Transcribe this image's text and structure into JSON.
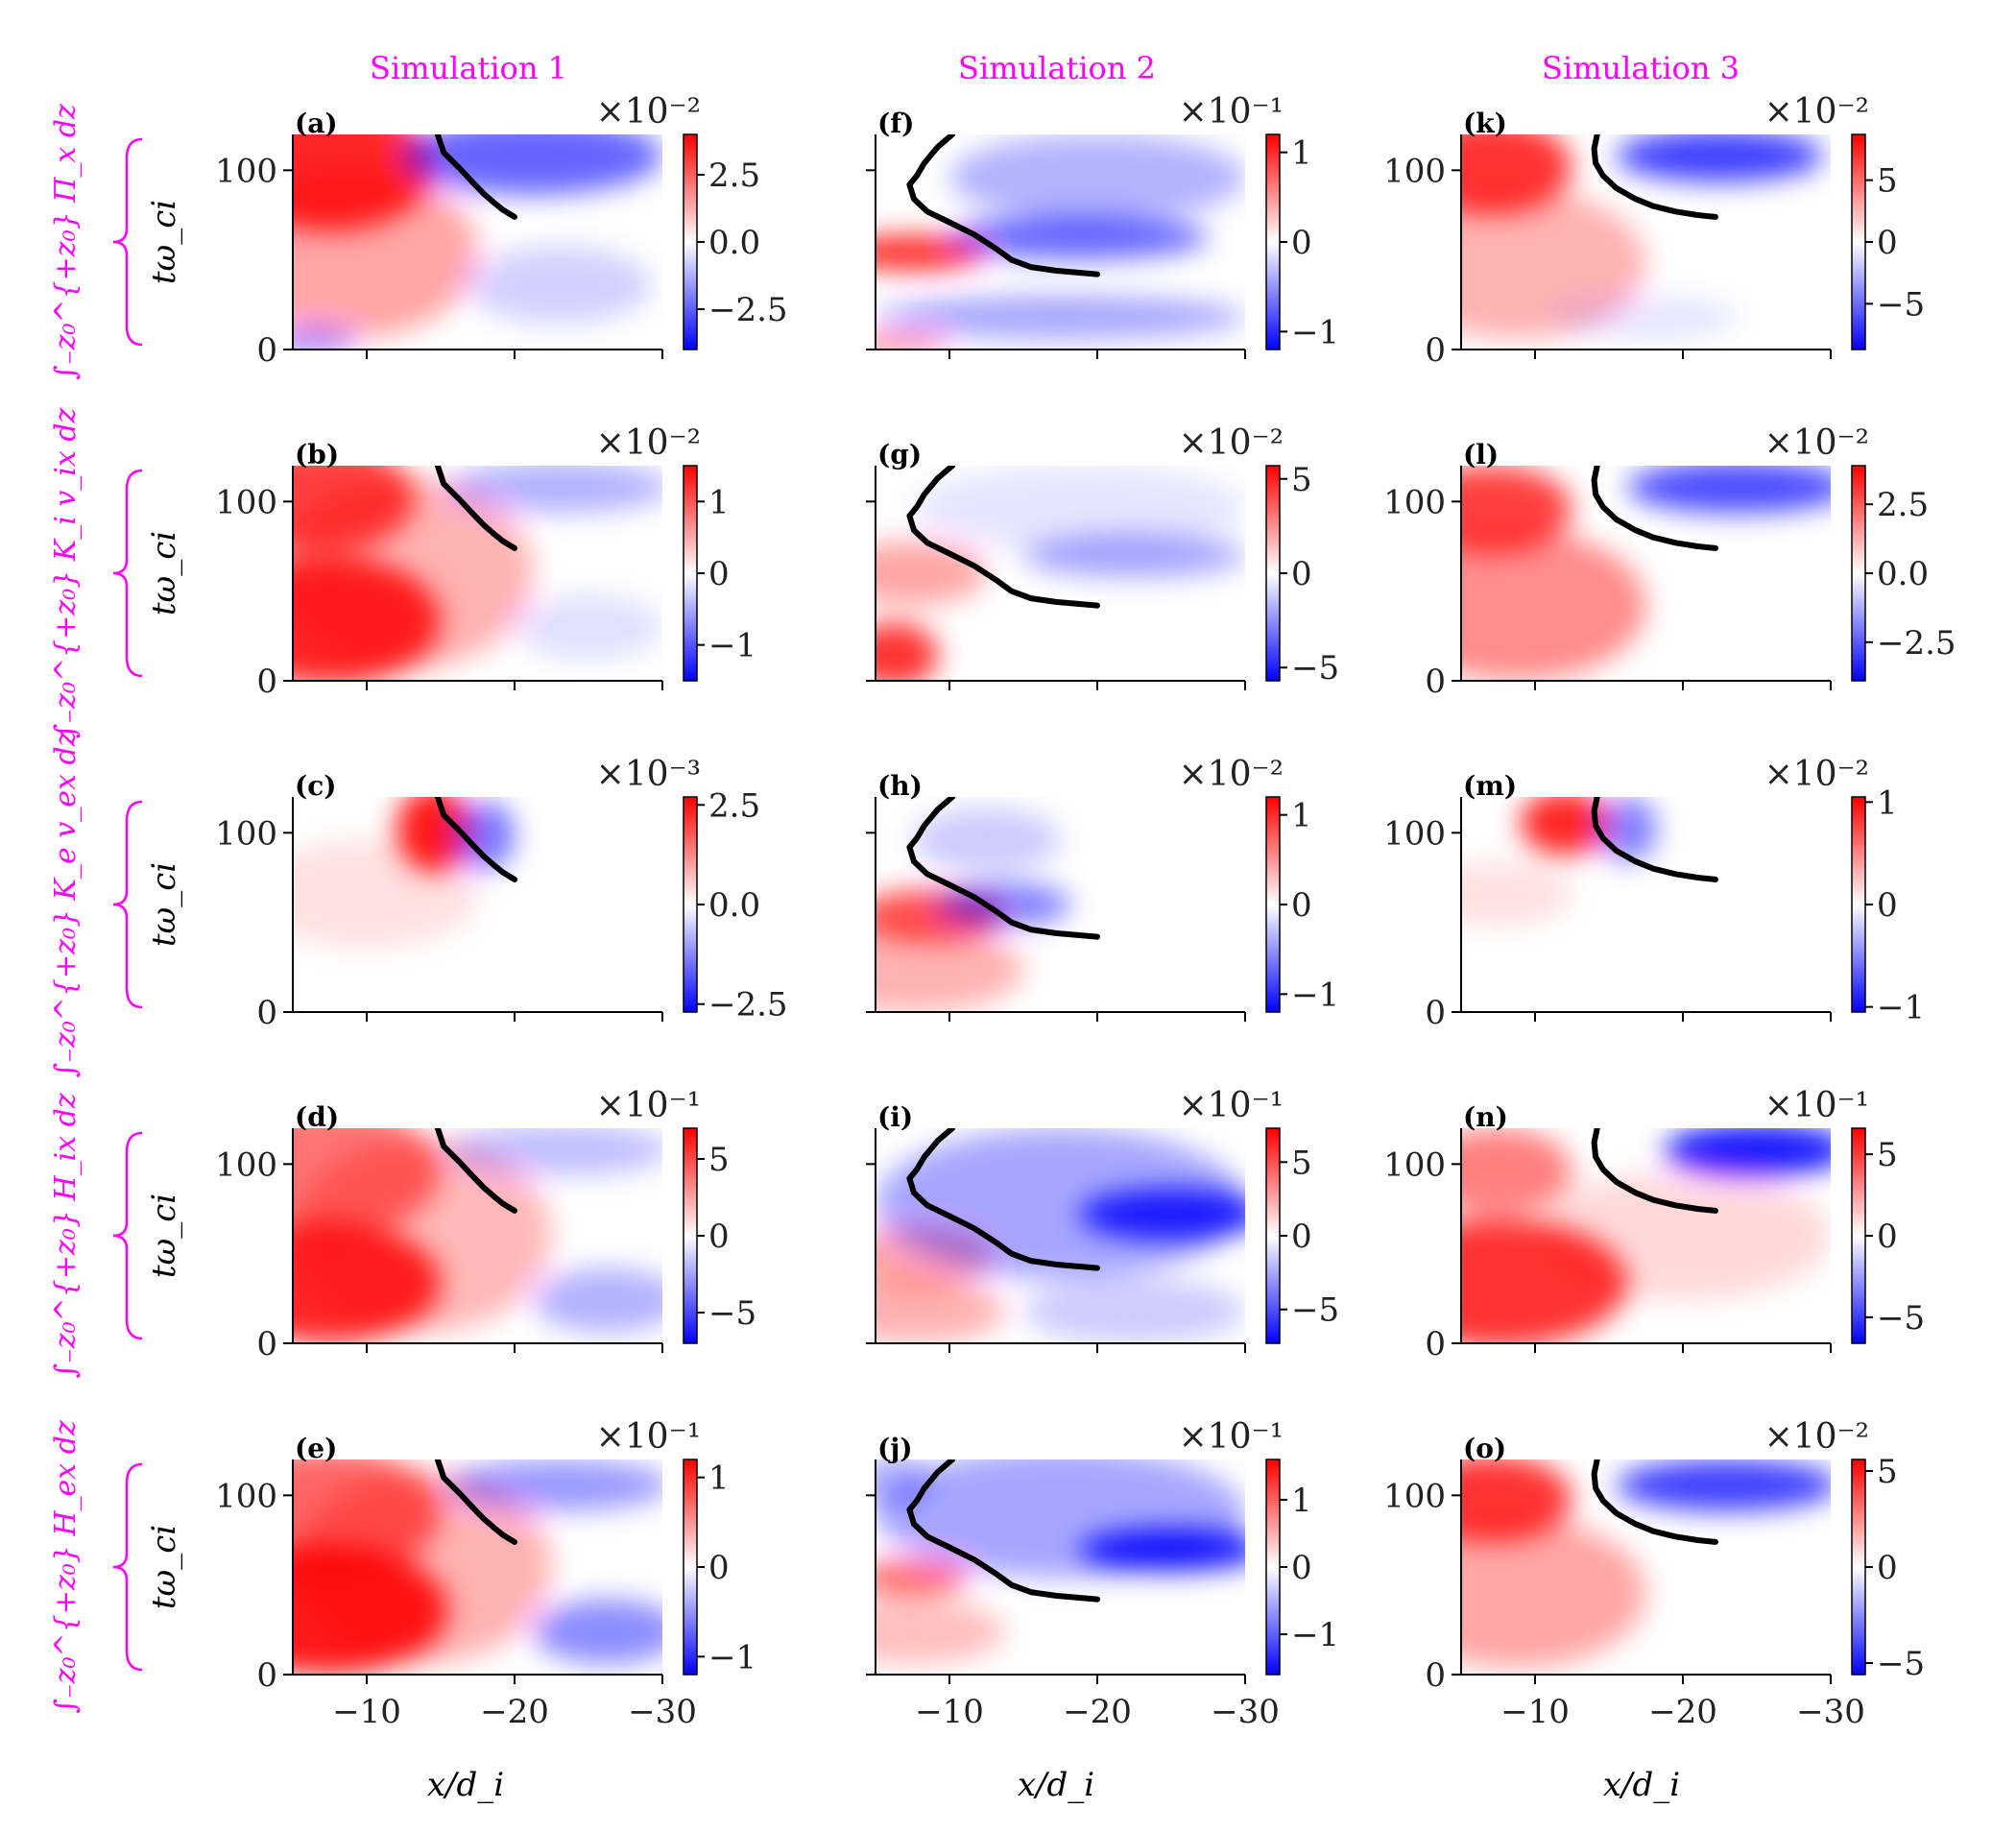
{
  "chart_data": {
    "type": "heatmap",
    "columns": [
      "Simulation 1",
      "Simulation 2",
      "Simulation 3"
    ],
    "row_labels": [
      "∫₋z₀^{+z₀} Π_x dz",
      "∫₋z₀^{+z₀} K_i v_ix dz",
      "∫₋z₀^{+z₀} K_e v_ex dz",
      "∫₋z₀^{+z₀} H_ix dz",
      "∫₋z₀^{+z₀} H_ex dz"
    ],
    "ylabel": "tω_ci",
    "xlabel": "x/d_i",
    "xlim": [
      -5,
      -30
    ],
    "ylim": [
      0,
      120
    ],
    "xticks": [
      "−10",
      "−20",
      "−30"
    ],
    "yticks": [
      "0",
      "100"
    ],
    "colormap": {
      "neg": "#0000ff",
      "mid": "#ffffff",
      "pos": "#ff0000"
    },
    "panels": [
      {
        "label": "(a)",
        "scale": "×10⁻²",
        "cbticks": [
          "2.5",
          "0.0",
          "−2.5"
        ],
        "cbvals": [
          2.5,
          0,
          -2.5
        ],
        "vmax": 4
      },
      {
        "label": "(b)",
        "scale": "×10⁻²",
        "cbticks": [
          "1",
          "0",
          "−1"
        ],
        "cbvals": [
          1,
          0,
          -1
        ],
        "vmax": 1.5
      },
      {
        "label": "(c)",
        "scale": "×10⁻³",
        "cbticks": [
          "2.5",
          "0.0",
          "−2.5"
        ],
        "cbvals": [
          2.5,
          0,
          -2.5
        ],
        "vmax": 2.7
      },
      {
        "label": "(d)",
        "scale": "×10⁻¹",
        "cbticks": [
          "5",
          "0",
          "−5"
        ],
        "cbvals": [
          5,
          0,
          -5
        ],
        "vmax": 7
      },
      {
        "label": "(e)",
        "scale": "×10⁻¹",
        "cbticks": [
          "1",
          "0",
          "−1"
        ],
        "cbvals": [
          1,
          0,
          -1
        ],
        "vmax": 1.2
      },
      {
        "label": "(f)",
        "scale": "×10⁻¹",
        "cbticks": [
          "1",
          "0",
          "−1"
        ],
        "cbvals": [
          1,
          0,
          -1
        ],
        "vmax": 1.2
      },
      {
        "label": "(g)",
        "scale": "×10⁻²",
        "cbticks": [
          "5",
          "0",
          "−5"
        ],
        "cbvals": [
          5,
          0,
          -5
        ],
        "vmax": 5.7
      },
      {
        "label": "(h)",
        "scale": "×10⁻²",
        "cbticks": [
          "1",
          "0",
          "−1"
        ],
        "cbvals": [
          1,
          0,
          -1
        ],
        "vmax": 1.2
      },
      {
        "label": "(i)",
        "scale": "×10⁻¹",
        "cbticks": [
          "5",
          "0",
          "−5"
        ],
        "cbvals": [
          5,
          0,
          -5
        ],
        "vmax": 7.3
      },
      {
        "label": "(j)",
        "scale": "×10⁻¹",
        "cbticks": [
          "1",
          "0",
          "−1"
        ],
        "cbvals": [
          1,
          0,
          -1
        ],
        "vmax": 1.6
      },
      {
        "label": "(k)",
        "scale": "×10⁻²",
        "cbticks": [
          "5",
          "0",
          "−5"
        ],
        "cbvals": [
          5,
          0,
          -5
        ],
        "vmax": 8.7
      },
      {
        "label": "(l)",
        "scale": "×10⁻²",
        "cbticks": [
          "2.5",
          "0.0",
          "−2.5"
        ],
        "cbvals": [
          2.5,
          0,
          -2.5
        ],
        "vmax": 3.9
      },
      {
        "label": "(m)",
        "scale": "×10⁻²",
        "cbticks": [
          "1",
          "0",
          "−1"
        ],
        "cbvals": [
          1,
          0,
          -1
        ],
        "vmax": 1.05
      },
      {
        "label": "(n)",
        "scale": "×10⁻¹",
        "cbticks": [
          "5",
          "0",
          "−5"
        ],
        "cbvals": [
          5,
          0,
          -5
        ],
        "vmax": 6.6
      },
      {
        "label": "(o)",
        "scale": "×10⁻²",
        "cbticks": [
          "5",
          "0",
          "−5"
        ],
        "cbvals": [
          5,
          0,
          -5
        ],
        "vmax": 5.6
      }
    ],
    "front_curves": [
      [
        [
          -14.8,
          120
        ],
        [
          -15.2,
          110
        ],
        [
          -16.3,
          101
        ],
        [
          -17.2,
          93
        ],
        [
          -17.9,
          87
        ],
        [
          -18.6,
          82
        ],
        [
          -19.2,
          78
        ],
        [
          -20,
          74
        ]
      ],
      [
        [
          -10.2,
          120
        ],
        [
          -9.2,
          113
        ],
        [
          -8.3,
          104
        ],
        [
          -7.8,
          97
        ],
        [
          -7.3,
          92
        ],
        [
          -7.6,
          84
        ],
        [
          -8.5,
          77
        ],
        [
          -10,
          71
        ],
        [
          -11.7,
          64
        ],
        [
          -13.2,
          56
        ],
        [
          -14.2,
          50
        ],
        [
          -15.5,
          46
        ],
        [
          -17.2,
          44
        ],
        [
          -20,
          42
        ]
      ],
      [
        [
          -14.2,
          120
        ],
        [
          -14,
          112
        ],
        [
          -14.1,
          104
        ],
        [
          -14.6,
          97
        ],
        [
          -15.5,
          90
        ],
        [
          -16.8,
          84
        ],
        [
          -18,
          80
        ],
        [
          -19.5,
          77
        ],
        [
          -21,
          75
        ],
        [
          -22.2,
          74
        ]
      ]
    ]
  }
}
